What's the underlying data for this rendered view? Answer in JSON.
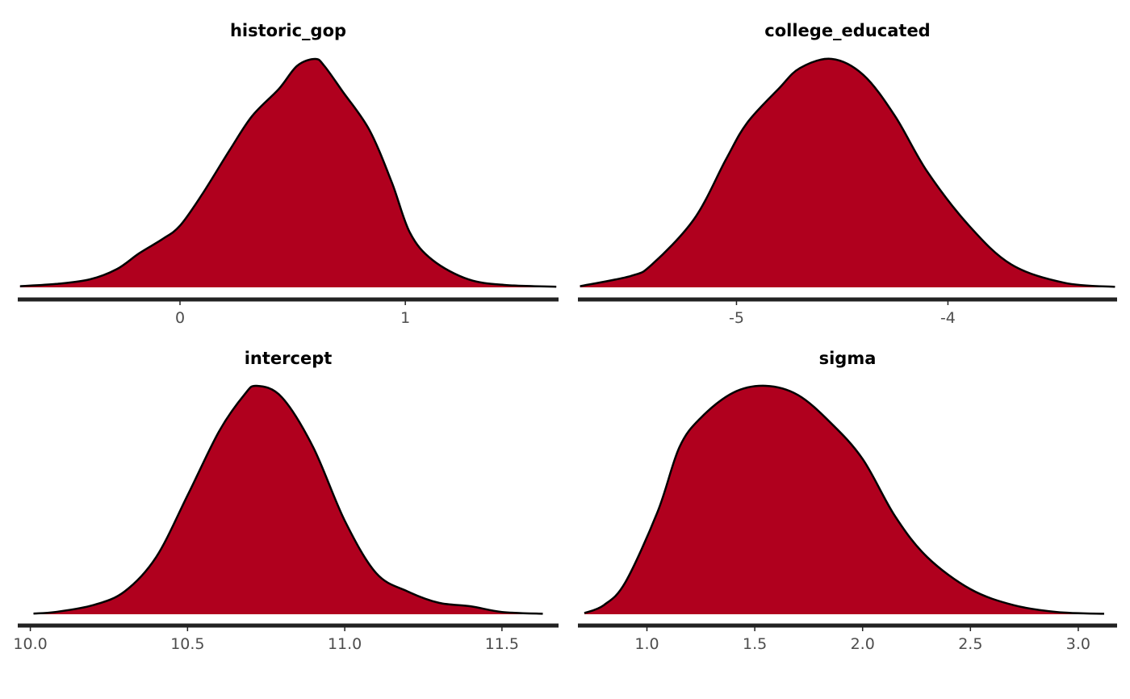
{
  "fill_color": "#b0001e",
  "line_color": "#000000",
  "axis_color": "#222222",
  "chart_data": [
    {
      "type": "area",
      "title": "historic_gop",
      "xlim": [
        -0.72,
        1.68
      ],
      "ticks": [
        0,
        1
      ],
      "tick_labels": [
        "0",
        "1"
      ],
      "x": [
        -0.71,
        -0.55,
        -0.4,
        -0.28,
        -0.18,
        -0.08,
        0.0,
        0.1,
        0.22,
        0.32,
        0.44,
        0.52,
        0.6,
        0.64,
        0.72,
        0.84,
        0.94,
        1.02,
        1.12,
        1.28,
        1.45,
        1.67
      ],
      "y": [
        0.005,
        0.015,
        0.035,
        0.08,
        0.15,
        0.21,
        0.27,
        0.41,
        0.6,
        0.75,
        0.87,
        0.97,
        1.0,
        0.97,
        0.86,
        0.69,
        0.46,
        0.24,
        0.12,
        0.035,
        0.01,
        0.003
      ]
    },
    {
      "type": "area",
      "title": "college_educated",
      "xlim": [
        -5.75,
        -3.2
      ],
      "ticks": [
        -5,
        -4
      ],
      "tick_labels": [
        "-5",
        "-4"
      ],
      "x": [
        -5.74,
        -5.5,
        -5.4,
        -5.2,
        -5.05,
        -4.95,
        -4.8,
        -4.7,
        -4.55,
        -4.4,
        -4.25,
        -4.1,
        -3.9,
        -3.7,
        -3.45,
        -3.21
      ],
      "y": [
        0.005,
        0.05,
        0.1,
        0.3,
        0.56,
        0.72,
        0.87,
        0.96,
        1.0,
        0.93,
        0.75,
        0.51,
        0.27,
        0.1,
        0.02,
        0.002
      ]
    },
    {
      "type": "area",
      "title": "intercept",
      "xlim": [
        9.96,
        11.68
      ],
      "ticks": [
        10.0,
        10.5,
        11.0,
        11.5
      ],
      "tick_labels": [
        "10.0",
        "10.5",
        "11.0",
        "11.5"
      ],
      "x": [
        10.01,
        10.08,
        10.2,
        10.3,
        10.4,
        10.5,
        10.6,
        10.68,
        10.72,
        10.8,
        10.9,
        11.0,
        11.1,
        11.2,
        11.3,
        11.4,
        11.5,
        11.63
      ],
      "y": [
        0.003,
        0.01,
        0.04,
        0.1,
        0.25,
        0.52,
        0.8,
        0.96,
        1.0,
        0.95,
        0.73,
        0.41,
        0.18,
        0.1,
        0.05,
        0.035,
        0.01,
        0.002
      ]
    },
    {
      "type": "area",
      "title": "sigma",
      "xlim": [
        0.68,
        3.18
      ],
      "ticks": [
        1.0,
        1.5,
        2.0,
        2.5,
        3.0
      ],
      "tick_labels": [
        "1.0",
        "1.5",
        "2.0",
        "2.5",
        "3.0"
      ],
      "x": [
        0.71,
        0.8,
        0.9,
        1.05,
        1.15,
        1.25,
        1.4,
        1.55,
        1.7,
        1.85,
        2.0,
        2.15,
        2.3,
        2.5,
        2.7,
        2.9,
        3.12
      ],
      "y": [
        0.005,
        0.04,
        0.14,
        0.45,
        0.73,
        0.86,
        0.97,
        1.0,
        0.96,
        0.84,
        0.68,
        0.43,
        0.25,
        0.11,
        0.04,
        0.01,
        0.002
      ]
    }
  ]
}
